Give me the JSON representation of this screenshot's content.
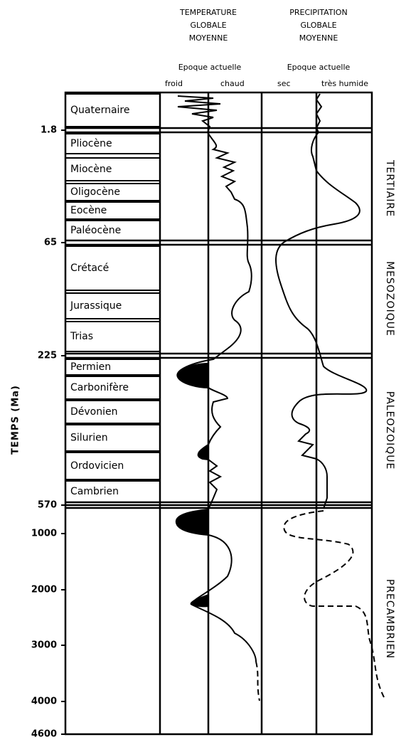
{
  "header": {
    "temperature_title": [
      "TEMPERATURE",
      "GLOBALE",
      "MOYENNE"
    ],
    "precipitation_title": [
      "PRECIPITATION",
      "GLOBALE",
      "MOYENNE"
    ],
    "temperature_subtitle": "Epoque actuelle",
    "precipitation_subtitle": "Epoque actuelle",
    "temperature_left": "froid",
    "temperature_right": "chaud",
    "precipitation_left": "sec",
    "precipitation_right": "très humide"
  },
  "axis_title": "TEMPS (Ma)",
  "time_ticks": [
    "1.8",
    "65",
    "225",
    "570",
    "1000",
    "2000",
    "3000",
    "4000",
    "4600"
  ],
  "periods": [
    "Quaternaire",
    "Pliocène",
    "Miocène",
    "Oligocène",
    "Eocène",
    "Paléocène",
    "Crétacé",
    "Jurassique",
    "Trias",
    "Permien",
    "Carbonifère",
    "Dévonien",
    "Silurien",
    "Ordovicien",
    "Cambrien"
  ],
  "eras": [
    "TERTIAIRE",
    "MESOZOIQUE",
    "PALEOZOIQUE",
    "PRECAMBRIEN"
  ]
}
